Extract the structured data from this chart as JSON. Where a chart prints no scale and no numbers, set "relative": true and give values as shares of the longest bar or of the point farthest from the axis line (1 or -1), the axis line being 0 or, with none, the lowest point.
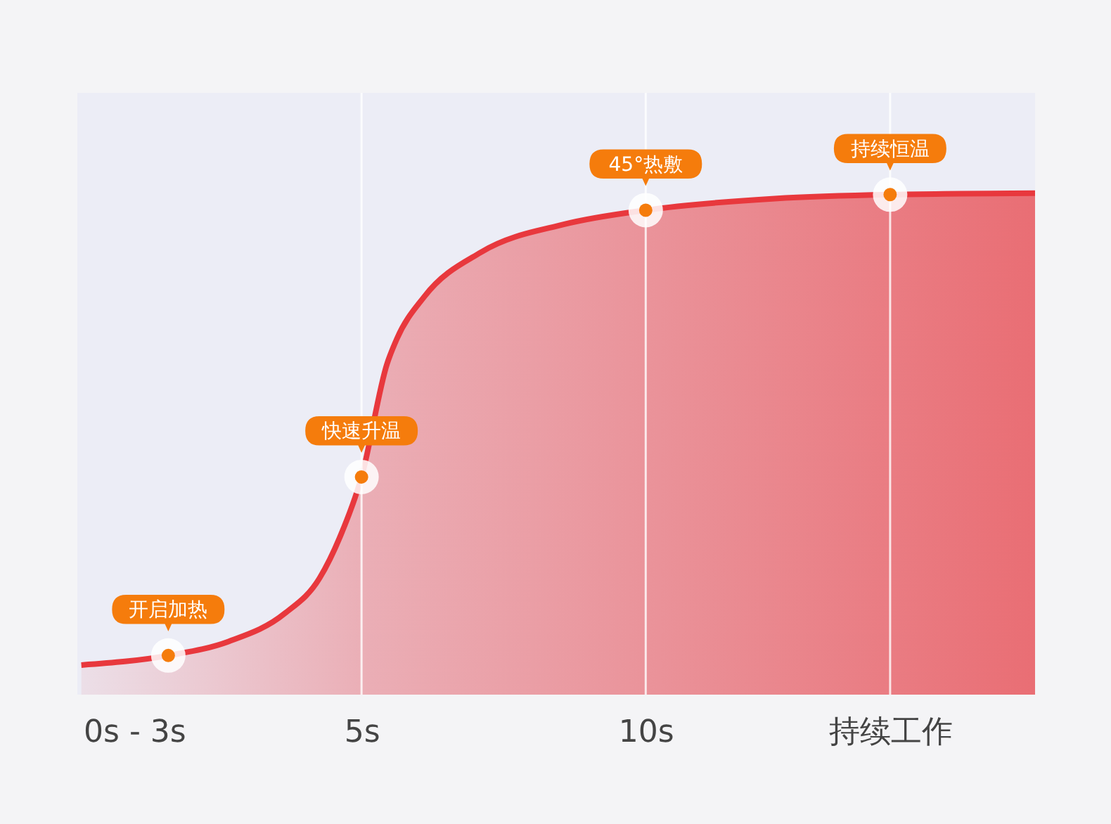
{
  "chart_data": {
    "type": "area",
    "relative": true,
    "x": [
      0.07,
      1.6,
      2.66,
      3.65,
      4.26,
      4.63,
      5,
      5.45,
      5.62,
      6.1,
      7.1,
      8.57,
      10,
      12.27,
      14.3,
      16.85
    ],
    "series": [
      {
        "color": "#e8383d",
        "values": [
          0.059,
          0.078,
          0.106,
          0.162,
          0.232,
          0.317,
          0.434,
          0.66,
          0.709,
          0.793,
          0.882,
          0.938,
          0.966,
          0.989,
          0.997,
          1
        ]
      }
    ],
    "xlim": [
      0,
      16.85
    ],
    "xticks": [
      {
        "value": 1,
        "label": "0s - 3s"
      },
      {
        "value": 5,
        "label": "5s"
      },
      {
        "value": 10,
        "label": "10s"
      },
      {
        "value": 14.3,
        "label": "持续工作"
      }
    ],
    "annotations": [
      {
        "text": "开启加热",
        "x": 1.6,
        "y": 0.078
      },
      {
        "text": "快速升温",
        "x": 5,
        "y": 0.434
      },
      {
        "text": "45°热敷",
        "x": 10,
        "y": 0.966
      },
      {
        "text": "持续恒温",
        "x": 14.3,
        "y": 0.997
      }
    ],
    "ref_lines": [
      {
        "axis": "x",
        "value": 5,
        "color": "#ffffff"
      },
      {
        "axis": "x",
        "value": 10,
        "color": "#ffffff"
      },
      {
        "axis": "x",
        "value": 14.3,
        "color": "#ffffff"
      }
    ]
  }
}
